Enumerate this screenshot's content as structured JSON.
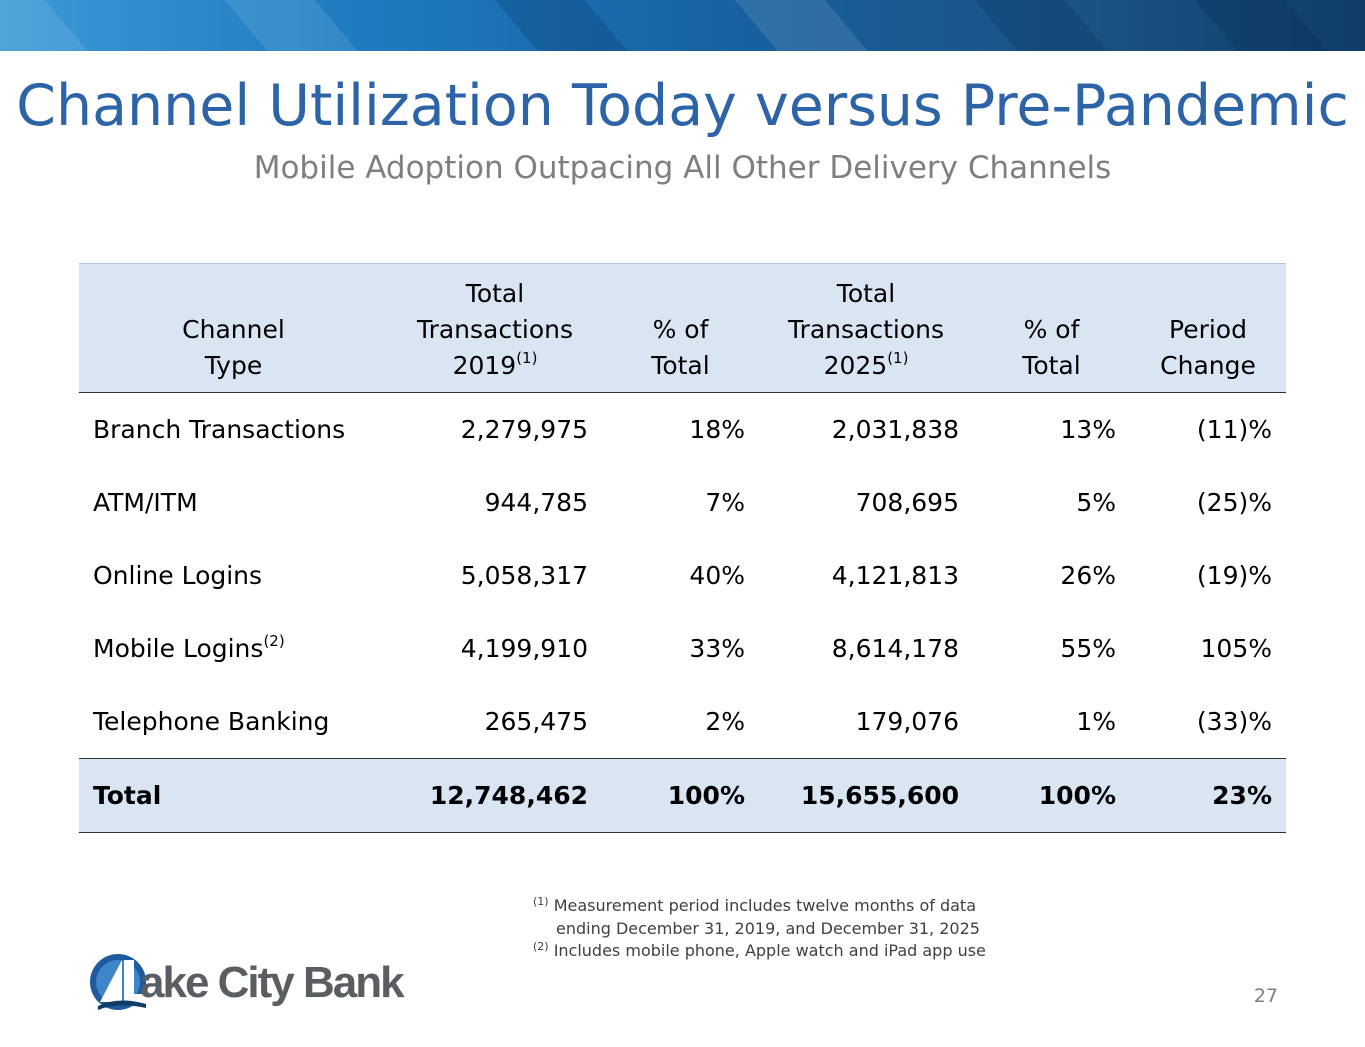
{
  "header": {
    "title": "Channel Utilization Today versus Pre-Pandemic",
    "subtitle": "Mobile Adoption Outpacing All Other Delivery Channels"
  },
  "table": {
    "columns": [
      {
        "line1": "",
        "line2": "Channel",
        "line3": "Type",
        "sup": ""
      },
      {
        "line1": "Total",
        "line2": "Transactions",
        "line3": "2019",
        "sup": "(1)"
      },
      {
        "line1": "",
        "line2": "% of",
        "line3": "Total",
        "sup": ""
      },
      {
        "line1": "Total",
        "line2": "Transactions",
        "line3": "2025",
        "sup": "(1)"
      },
      {
        "line1": "",
        "line2": "% of",
        "line3": "Total",
        "sup": ""
      },
      {
        "line1": "",
        "line2": "Period",
        "line3": "Change",
        "sup": ""
      }
    ],
    "rows": [
      {
        "channel": "Branch Transactions",
        "sup": "",
        "t2019": "2,279,975",
        "p2019": "18%",
        "t2025": "2,031,838",
        "p2025": "13%",
        "change": "(11)%"
      },
      {
        "channel": "ATM/ITM",
        "sup": "",
        "t2019": "944,785",
        "p2019": "7%",
        "t2025": "708,695",
        "p2025": "5%",
        "change": "(25)%"
      },
      {
        "channel": "Online Logins",
        "sup": "",
        "t2019": "5,058,317",
        "p2019": "40%",
        "t2025": "4,121,813",
        "p2025": "26%",
        "change": "(19)%"
      },
      {
        "channel": "Mobile Logins",
        "sup": "(2)",
        "t2019": "4,199,910",
        "p2019": "33%",
        "t2025": "8,614,178",
        "p2025": "55%",
        "change": "105%"
      },
      {
        "channel": "Telephone Banking",
        "sup": "",
        "t2019": "265,475",
        "p2019": "2%",
        "t2025": "179,076",
        "p2025": "1%",
        "change": "(33)%"
      }
    ],
    "total": {
      "channel": "Total",
      "t2019": "12,748,462",
      "p2019": "100%",
      "t2025": "15,655,600",
      "p2025": "100%",
      "change": "23%"
    }
  },
  "footnotes": {
    "n1_marker": "(1)",
    "n1_line1": "Measurement period includes twelve months of data",
    "n1_line2": "ending December 31, 2019, and December 31, 2025",
    "n2_marker": "(2)",
    "n2_line1": "Includes mobile phone, Apple watch and iPad app use"
  },
  "logo": {
    "text": "Lake City Bank",
    "visible_text": "ake City Bank"
  },
  "page_number": "27",
  "colors": {
    "title": "#2d64a8",
    "header_fill": "#dae5f4",
    "subtitle": "#7f7f7f"
  }
}
